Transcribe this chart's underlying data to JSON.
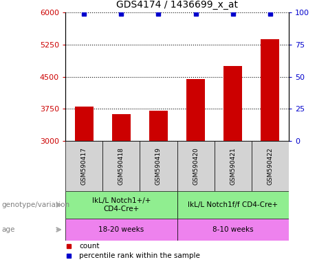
{
  "title": "GDS4174 / 1436699_x_at",
  "samples": [
    "GSM590417",
    "GSM590418",
    "GSM590419",
    "GSM590420",
    "GSM590421",
    "GSM590422"
  ],
  "counts": [
    3800,
    3620,
    3700,
    4450,
    4750,
    5380
  ],
  "percentile_ranks": [
    99,
    99,
    99,
    99,
    99,
    99
  ],
  "ylim_left": [
    3000,
    6000
  ],
  "yticks_left": [
    3000,
    3750,
    4500,
    5250,
    6000
  ],
  "ylim_right": [
    0,
    100
  ],
  "yticks_right": [
    0,
    25,
    50,
    75,
    100
  ],
  "bar_color": "#cc0000",
  "dot_color": "#0000cc",
  "bar_width": 0.5,
  "groups": [
    {
      "label": "IkL/L Notch1+/+\nCD4-Cre+",
      "samples": [
        0,
        1,
        2
      ],
      "color": "#90ee90"
    },
    {
      "label": "IkL/L Notch1f/f CD4-Cre+",
      "samples": [
        3,
        4,
        5
      ],
      "color": "#90ee90"
    }
  ],
  "ages": [
    {
      "label": "18-20 weeks",
      "samples": [
        0,
        1,
        2
      ],
      "color": "#ee82ee"
    },
    {
      "label": "8-10 weeks",
      "samples": [
        3,
        4,
        5
      ],
      "color": "#ee82ee"
    }
  ],
  "annotation_left": "genotype/variation",
  "annotation_left2": "age",
  "legend_count_label": "count",
  "legend_pct_label": "percentile rank within the sample",
  "grid_color": "black",
  "bg_sample_color": "#d3d3d3",
  "tick_color_left": "#cc0000",
  "tick_color_right": "#0000cc",
  "fig_width": 4.61,
  "fig_height": 3.84,
  "fig_dpi": 100
}
